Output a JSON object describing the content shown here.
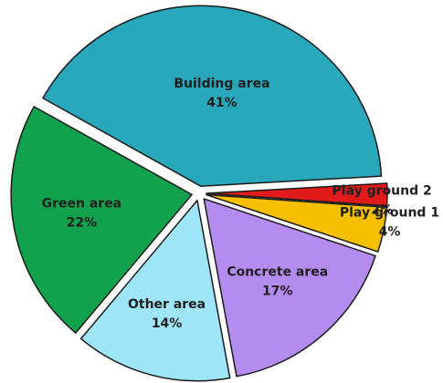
{
  "chart_data": {
    "type": "pie",
    "title": "",
    "series": [
      {
        "values": [
          {
            "label": "Play ground 1",
            "value": 4,
            "percent_label": "4%",
            "color": "#F6C000"
          },
          {
            "label": "Concrete area",
            "value": 17,
            "percent_label": "17%",
            "color": "#B48CF0"
          },
          {
            "label": "Other area",
            "value": 14,
            "percent_label": "14%",
            "color": "#9EE5F7"
          },
          {
            "label": "Green area",
            "value": 22,
            "percent_label": "22%",
            "color": "#12A24E"
          },
          {
            "label": "Building area",
            "value": 41,
            "percent_label": "41%",
            "color": "#2AA8BB"
          },
          {
            "label": "Play ground 2",
            "value": 2,
            "percent_label": "2%",
            "color": "#E11B1B"
          }
        ]
      }
    ],
    "legend": "none",
    "slice_outline": "#1a1a1a"
  }
}
